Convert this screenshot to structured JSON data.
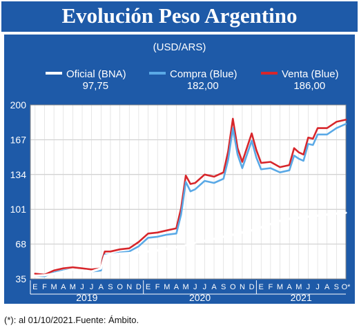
{
  "title": "Evolución Peso Argentino",
  "unit": "(USD/ARS)",
  "legend": [
    {
      "label": "Oficial (BNA)",
      "value": "97,75",
      "color": "#ffffff"
    },
    {
      "label": "Compra (Blue)",
      "value": "182,00",
      "color": "#5aa9e6"
    },
    {
      "label": "Venta (Blue)",
      "value": "186,00",
      "color": "#d7262b"
    }
  ],
  "footnote": "(*): al 01/10/2021.Fuente: Ámbito.",
  "chart_data": {
    "type": "line",
    "ylim": [
      35,
      200
    ],
    "yticks": [
      "35",
      "68",
      "101",
      "134",
      "167",
      "200"
    ],
    "month_ticks": [
      "E",
      "F",
      "M",
      "A",
      "M",
      "J",
      "J",
      "A",
      "S",
      "O",
      "N",
      "D",
      "E",
      "F",
      "M",
      "A",
      "M",
      "J",
      "J",
      "A",
      "S",
      "O",
      "N",
      "D",
      "E",
      "F",
      "M",
      "A",
      "M",
      "J",
      "J",
      "A",
      "S",
      "O*"
    ],
    "year_labels": [
      "2019",
      "2020",
      "2021"
    ],
    "grid": true,
    "series": [
      {
        "name": "Oficial (BNA)",
        "color": "#ffffff",
        "x": [
          0,
          1,
          2,
          3,
          4,
          5,
          6,
          7,
          7.4,
          8,
          9,
          10,
          11,
          12,
          13,
          14,
          15,
          16,
          17,
          18,
          19,
          20,
          21,
          22,
          23,
          24,
          25,
          26,
          27,
          28,
          29,
          30,
          31,
          32,
          33
        ],
        "values": [
          38,
          38.5,
          40,
          42,
          44,
          43,
          42,
          45,
          57,
          58,
          59,
          59.5,
          60,
          61,
          62,
          63.5,
          65,
          67,
          69,
          71,
          73,
          75,
          77,
          79,
          81,
          84,
          87,
          90,
          92,
          93,
          94,
          95,
          96,
          97,
          97.75
        ]
      },
      {
        "name": "Compra (Blue)",
        "color": "#5aa9e6",
        "x": [
          0,
          1,
          2,
          3,
          4,
          5,
          6,
          7,
          7.2,
          7.4,
          8,
          9,
          10,
          11,
          12,
          13,
          14,
          15,
          15.5,
          16,
          16.5,
          17,
          18,
          19,
          20,
          20.5,
          21,
          21.5,
          22,
          23,
          23.5,
          24,
          25,
          26,
          27,
          27.5,
          28,
          28.5,
          29,
          29.5,
          30,
          31,
          32,
          33
        ],
        "values": [
          38,
          37.5,
          41,
          43,
          44,
          43,
          42,
          43,
          52,
          58,
          58,
          60,
          61,
          66,
          74,
          75,
          77,
          78,
          96,
          127,
          118,
          120,
          128,
          126,
          130,
          148,
          178,
          153,
          140,
          166,
          150,
          139,
          140,
          136,
          138,
          152,
          149,
          147,
          163,
          162,
          172,
          172,
          178,
          182
        ]
      },
      {
        "name": "Venta (Blue)",
        "color": "#d7262b",
        "x": [
          0,
          1,
          2,
          3,
          4,
          5,
          6,
          7,
          7.2,
          7.4,
          8,
          9,
          10,
          11,
          12,
          13,
          14,
          15,
          15.5,
          16,
          16.5,
          17,
          18,
          19,
          20,
          20.5,
          21,
          21.5,
          22,
          23,
          23.5,
          24,
          25,
          26,
          27,
          27.5,
          28,
          28.5,
          29,
          29.5,
          30,
          31,
          32,
          33
        ],
        "values": [
          40,
          39,
          43,
          45,
          46,
          45,
          44,
          45,
          55,
          61,
          61,
          63,
          64,
          70,
          78,
          79,
          81,
          83,
          102,
          133,
          125,
          126,
          134,
          132,
          136,
          156,
          187,
          159,
          146,
          173,
          157,
          145,
          146,
          141,
          143,
          159,
          155,
          153,
          169,
          168,
          178,
          178,
          184,
          186
        ]
      }
    ]
  }
}
